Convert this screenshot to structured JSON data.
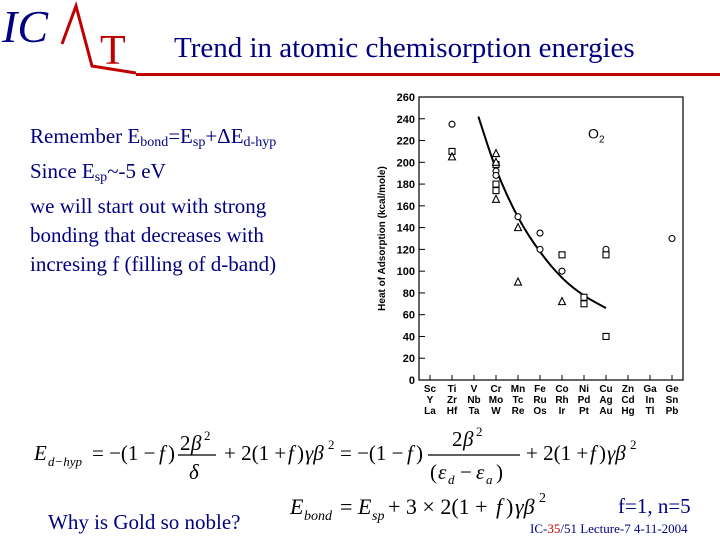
{
  "header": {
    "logo_ic": "IC",
    "logo_t": "T",
    "title": "Trend in atomic chemisorption energies"
  },
  "remember": {
    "line1_prefix": "Remember E",
    "line1_sub1": "bond",
    "line1_mid": "=E",
    "line1_sub2": "sp",
    "line1_plus": "+ΔE",
    "line1_sub3": "d-hyp",
    "line2_prefix": "Since E",
    "line2_sub": "sp",
    "line2_rest": "~-5 eV",
    "line3": "we will start out with strong",
    "line4": "bonding that decreases with",
    "line5": "incresing f (filling of d-band)"
  },
  "bottom": {
    "gold_question": "Why is Gold so noble?",
    "f_n": "f=1, n=5",
    "footer_part1": "IC-",
    "footer_part2": "35",
    "footer_part3": "/51  Lecture-7 4-11-2004"
  },
  "equations": {
    "e_dhyp": "E_d-hyp = −(1 − f)·2β²/δ + 2(1 + f)γβ² = −(1 − f)·2β²/(ε_d − ε_a) + 2(1 + f)γβ²",
    "e_bond": "E_bond = E_sp + 3 × 2(1 + f)γβ²"
  },
  "chart_data": {
    "type": "scatter",
    "ylabel": "Heat of Adsorption (kcal/mole)",
    "ylim": [
      0,
      260
    ],
    "yticks": [
      0,
      20,
      40,
      60,
      80,
      100,
      120,
      140,
      160,
      180,
      200,
      220,
      240,
      260
    ],
    "x_groups": [
      [
        "Sc",
        "Y",
        "La"
      ],
      [
        "Ti",
        "Zr",
        "Hf"
      ],
      [
        "V",
        "Nb",
        "Ta"
      ],
      [
        "Cr",
        "Mo",
        "W"
      ],
      [
        "Mn",
        "Tc",
        "Re"
      ],
      [
        "Fe",
        "Ru",
        "Os"
      ],
      [
        "Co",
        "Rh",
        "Ir"
      ],
      [
        "Ni",
        "Pd",
        "Pt"
      ],
      [
        "Cu",
        "Ag",
        "Au"
      ],
      [
        "Zn",
        "Cd",
        "Hg"
      ],
      [
        "Ga",
        "In",
        "Tl"
      ],
      [
        "Ge",
        "Sn",
        "Pb"
      ]
    ],
    "annotation": "O",
    "annotation_sub": "2",
    "series": [
      {
        "marker": "circle",
        "points": [
          {
            "x": 1,
            "y": 235
          },
          {
            "x": 3,
            "y": 192
          },
          {
            "x": 3,
            "y": 188
          },
          {
            "x": 3,
            "y": 176
          },
          {
            "x": 4,
            "y": 150
          },
          {
            "x": 5,
            "y": 135
          },
          {
            "x": 5,
            "y": 120
          },
          {
            "x": 6,
            "y": 100
          },
          {
            "x": 8,
            "y": 120
          },
          {
            "x": 11,
            "y": 130
          }
        ]
      },
      {
        "marker": "square",
        "points": [
          {
            "x": 1,
            "y": 210
          },
          {
            "x": 3,
            "y": 198
          },
          {
            "x": 3,
            "y": 180
          },
          {
            "x": 3,
            "y": 174
          },
          {
            "x": 6,
            "y": 115
          },
          {
            "x": 7,
            "y": 76
          },
          {
            "x": 7,
            "y": 70
          },
          {
            "x": 8,
            "y": 115
          },
          {
            "x": 8,
            "y": 40
          }
        ]
      },
      {
        "marker": "triangle",
        "points": [
          {
            "x": 1,
            "y": 205
          },
          {
            "x": 3,
            "y": 208
          },
          {
            "x": 3,
            "y": 200
          },
          {
            "x": 3,
            "y": 166
          },
          {
            "x": 4,
            "y": 140
          },
          {
            "x": 4,
            "y": 90
          },
          {
            "x": 6,
            "y": 72
          }
        ]
      }
    ],
    "trend_curve": [
      {
        "x": 2.2,
        "y": 242
      },
      {
        "x": 3,
        "y": 192
      },
      {
        "x": 4,
        "y": 148
      },
      {
        "x": 5,
        "y": 117
      },
      {
        "x": 6,
        "y": 93
      },
      {
        "x": 7,
        "y": 77
      },
      {
        "x": 8,
        "y": 66
      }
    ]
  },
  "colors": {
    "navy": "#000080",
    "red": "#c00000"
  }
}
